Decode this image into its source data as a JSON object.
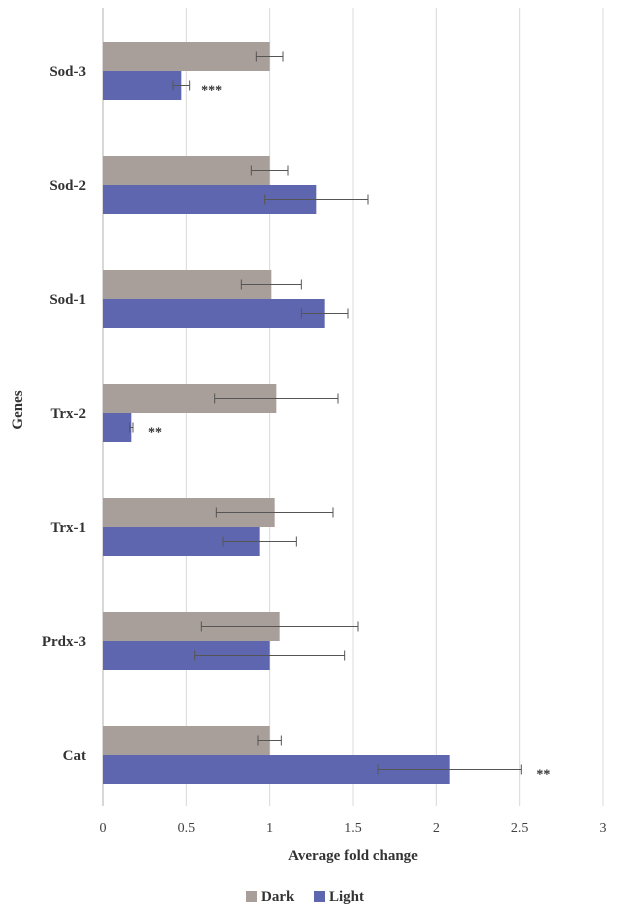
{
  "chart_data": {
    "type": "bar",
    "orientation": "horizontal",
    "title": "",
    "xlabel": "Average fold change",
    "ylabel": "Genes",
    "xlim": [
      0,
      3
    ],
    "xticks": [
      "0",
      "0.5",
      "1",
      "1.5",
      "2",
      "2.5",
      "3"
    ],
    "grid": "vertical",
    "legend_position": "bottom",
    "categories": [
      "Sod-3",
      "Sod-2",
      "Sod-1",
      "Trx-2",
      "Trx-1",
      "Prdx-3",
      "Cat"
    ],
    "series": [
      {
        "name": "Dark",
        "color": "#a89e9a",
        "values": [
          1.0,
          1.0,
          1.01,
          1.04,
          1.03,
          1.06,
          1.0
        ],
        "errors": [
          0.08,
          0.11,
          0.18,
          0.37,
          0.35,
          0.47,
          0.07
        ]
      },
      {
        "name": "Light",
        "color": "#5f66b0",
        "values": [
          0.47,
          1.28,
          1.33,
          0.17,
          0.94,
          1.0,
          2.08
        ],
        "errors": [
          0.05,
          0.31,
          0.14,
          0.01,
          0.22,
          0.45,
          0.43
        ]
      }
    ],
    "annotations": [
      {
        "category": "Sod-3",
        "series": "Light",
        "text": "***"
      },
      {
        "category": "Trx-2",
        "series": "Light",
        "text": "**"
      },
      {
        "category": "Cat",
        "series": "Light",
        "text": "**"
      }
    ]
  }
}
